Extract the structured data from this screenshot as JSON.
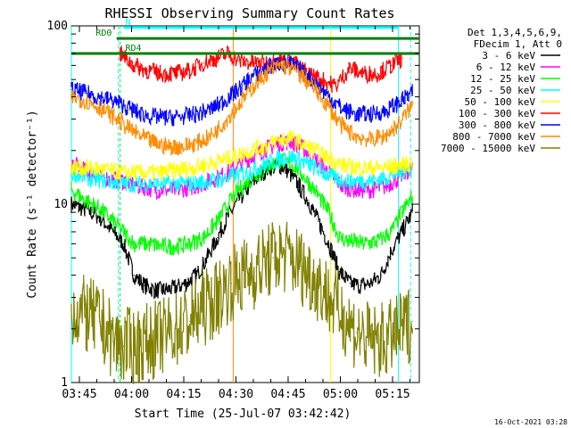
{
  "chart_data": {
    "type": "line",
    "title": "RHESSI Observing Summary Count Rates",
    "xlabel": "Start Time (25-Jul-07 03:42:42)",
    "ylabel": "Count Rate (s⁻¹ detector⁻¹)",
    "y_scale": "log",
    "ylim": [
      1,
      100
    ],
    "xlim_minutes": [
      0,
      100
    ],
    "x_tick_labels": [
      "03:45",
      "04:00",
      "04:15",
      "04:30",
      "04:45",
      "05:00",
      "05:15"
    ],
    "x_tick_minutes": [
      2.3,
      17.3,
      32.3,
      47.3,
      62.3,
      77.3,
      92.3
    ],
    "y_tick_labels": [
      "1",
      "10",
      "100"
    ],
    "legend_header": [
      "Det 1,3,4,5,6,9,",
      "FDecim 1, Att 0"
    ],
    "legend_position": "right",
    "series": [
      {
        "name": "3 - 6 keV",
        "color": "#000000",
        "values": [
          [
            0,
            10
          ],
          [
            3,
            9.5
          ],
          [
            8,
            8.5
          ],
          [
            12,
            7
          ],
          [
            15,
            6
          ],
          [
            18,
            4
          ],
          [
            21,
            3.5
          ],
          [
            24,
            3.3
          ],
          [
            27,
            3.3
          ],
          [
            30,
            3.4
          ],
          [
            33,
            3.6
          ],
          [
            36,
            4
          ],
          [
            39,
            5
          ],
          [
            42,
            6.5
          ],
          [
            45,
            8.5
          ],
          [
            48,
            10.5
          ],
          [
            51,
            12.5
          ],
          [
            54,
            14.5
          ],
          [
            57,
            16
          ],
          [
            60,
            16.5
          ],
          [
            62,
            15.5
          ],
          [
            65,
            13
          ],
          [
            68,
            10.5
          ],
          [
            71,
            8
          ],
          [
            74,
            6
          ],
          [
            77,
            4.2
          ],
          [
            80,
            3.6
          ],
          [
            83,
            3.5
          ],
          [
            86,
            3.6
          ],
          [
            89,
            4
          ],
          [
            92,
            5.5
          ],
          [
            95,
            7
          ],
          [
            98,
            9
          ]
        ]
      },
      {
        "name": "6 - 12 keV",
        "color": "#ff00ff",
        "values": [
          [
            0,
            17
          ],
          [
            5,
            15
          ],
          [
            10,
            14
          ],
          [
            15,
            13.5
          ],
          [
            20,
            12.5
          ],
          [
            25,
            12
          ],
          [
            30,
            12
          ],
          [
            35,
            12.5
          ],
          [
            40,
            13.5
          ],
          [
            45,
            15
          ],
          [
            50,
            17.5
          ],
          [
            55,
            20
          ],
          [
            60,
            22
          ],
          [
            63,
            22.5
          ],
          [
            66,
            21
          ],
          [
            70,
            18
          ],
          [
            74,
            15
          ],
          [
            78,
            12.5
          ],
          [
            82,
            12
          ],
          [
            86,
            12
          ],
          [
            90,
            12.5
          ],
          [
            94,
            14
          ],
          [
            98,
            16
          ]
        ]
      },
      {
        "name": "12 - 25 keV",
        "color": "#00ff00",
        "values": [
          [
            0,
            12
          ],
          [
            4,
            10.5
          ],
          [
            8,
            9.5
          ],
          [
            12,
            8
          ],
          [
            15,
            7
          ],
          [
            18,
            6
          ],
          [
            22,
            6
          ],
          [
            26,
            5.8
          ],
          [
            30,
            5.8
          ],
          [
            34,
            6
          ],
          [
            38,
            6.5
          ],
          [
            42,
            8
          ],
          [
            45,
            10
          ],
          [
            48,
            12
          ],
          [
            52,
            14
          ],
          [
            56,
            16
          ],
          [
            60,
            17.5
          ],
          [
            63,
            17
          ],
          [
            66,
            15
          ],
          [
            70,
            12
          ],
          [
            74,
            9
          ],
          [
            77,
            6.5
          ],
          [
            80,
            6.2
          ],
          [
            84,
            6
          ],
          [
            88,
            6.2
          ],
          [
            92,
            7
          ],
          [
            95,
            9
          ],
          [
            98,
            11
          ]
        ]
      },
      {
        "name": "25 - 50 keV",
        "color": "#00ffff",
        "values": [
          [
            0,
            15
          ],
          [
            5,
            14
          ],
          [
            10,
            13.5
          ],
          [
            15,
            13
          ],
          [
            20,
            13
          ],
          [
            25,
            13
          ],
          [
            30,
            13
          ],
          [
            35,
            13
          ],
          [
            40,
            13.5
          ],
          [
            45,
            14
          ],
          [
            50,
            15
          ],
          [
            55,
            16.5
          ],
          [
            60,
            18
          ],
          [
            63,
            18.5
          ],
          [
            66,
            17.5
          ],
          [
            70,
            16
          ],
          [
            74,
            14.5
          ],
          [
            78,
            13.5
          ],
          [
            82,
            13.5
          ],
          [
            86,
            13.5
          ],
          [
            90,
            14
          ],
          [
            94,
            15
          ],
          [
            98,
            16
          ]
        ]
      },
      {
        "name": "50 - 100 keV",
        "color": "#ffff00",
        "values": [
          [
            0,
            16
          ],
          [
            5,
            16
          ],
          [
            10,
            15.5
          ],
          [
            15,
            15
          ],
          [
            20,
            15
          ],
          [
            25,
            15
          ],
          [
            30,
            15.5
          ],
          [
            35,
            16
          ],
          [
            40,
            17
          ],
          [
            45,
            18
          ],
          [
            50,
            19.5
          ],
          [
            55,
            21
          ],
          [
            60,
            23
          ],
          [
            63,
            23.5
          ],
          [
            66,
            22
          ],
          [
            70,
            20
          ],
          [
            74,
            18
          ],
          [
            78,
            16.5
          ],
          [
            82,
            16
          ],
          [
            86,
            16
          ],
          [
            90,
            16
          ],
          [
            94,
            16.5
          ],
          [
            98,
            17
          ]
        ]
      },
      {
        "name": "100 - 300 keV",
        "color": "#ff0000",
        "values": [
          [
            14,
            70
          ],
          [
            18,
            60
          ],
          [
            22,
            56
          ],
          [
            26,
            54
          ],
          [
            30,
            54
          ],
          [
            34,
            56
          ],
          [
            38,
            62
          ],
          [
            42,
            66
          ],
          [
            45,
            70
          ],
          [
            48,
            64
          ],
          [
            52,
            62
          ],
          [
            56,
            62
          ],
          [
            60,
            64
          ],
          [
            63,
            64
          ],
          [
            66,
            58
          ],
          [
            70,
            52
          ],
          [
            74,
            48
          ],
          [
            76,
            46
          ],
          [
            80,
            58
          ],
          [
            84,
            54
          ],
          [
            88,
            54
          ],
          [
            92,
            60
          ],
          [
            95,
            66
          ]
        ]
      },
      {
        "name": "300 - 800 keV",
        "color": "#0000ff",
        "values": [
          [
            0,
            44
          ],
          [
            4,
            42
          ],
          [
            8,
            40
          ],
          [
            12,
            38
          ],
          [
            16,
            35
          ],
          [
            20,
            32
          ],
          [
            24,
            31
          ],
          [
            28,
            30.5
          ],
          [
            32,
            31
          ],
          [
            36,
            32
          ],
          [
            40,
            34
          ],
          [
            44,
            38
          ],
          [
            48,
            44
          ],
          [
            52,
            52
          ],
          [
            56,
            58
          ],
          [
            60,
            62
          ],
          [
            63,
            61
          ],
          [
            66,
            56
          ],
          [
            70,
            48
          ],
          [
            74,
            40
          ],
          [
            78,
            34
          ],
          [
            82,
            32
          ],
          [
            86,
            32
          ],
          [
            90,
            33
          ],
          [
            94,
            37
          ],
          [
            98,
            42
          ]
        ]
      },
      {
        "name": "800 - 7000 keV",
        "color": "#ff8c00",
        "values": [
          [
            0,
            40
          ],
          [
            4,
            38
          ],
          [
            8,
            35
          ],
          [
            12,
            31
          ],
          [
            16,
            27
          ],
          [
            20,
            24
          ],
          [
            24,
            22
          ],
          [
            28,
            21
          ],
          [
            32,
            21
          ],
          [
            36,
            22
          ],
          [
            40,
            24
          ],
          [
            44,
            29
          ],
          [
            48,
            36
          ],
          [
            52,
            45
          ],
          [
            56,
            54
          ],
          [
            60,
            60
          ],
          [
            63,
            58
          ],
          [
            66,
            53
          ],
          [
            70,
            44
          ],
          [
            74,
            35
          ],
          [
            78,
            27
          ],
          [
            82,
            24
          ],
          [
            86,
            23
          ],
          [
            90,
            24
          ],
          [
            94,
            28
          ],
          [
            98,
            36
          ]
        ]
      },
      {
        "name": "7000 - 15000 keV",
        "color": "#808000",
        "values": [
          [
            0,
            2.6
          ],
          [
            4,
            2.4
          ],
          [
            8,
            2.2
          ],
          [
            12,
            1.7
          ],
          [
            15,
            1.6
          ],
          [
            18,
            1.6
          ],
          [
            22,
            1.7
          ],
          [
            26,
            1.8
          ],
          [
            30,
            2
          ],
          [
            34,
            2.2
          ],
          [
            38,
            2.6
          ],
          [
            42,
            3
          ],
          [
            46,
            3.6
          ],
          [
            50,
            4
          ],
          [
            54,
            4.4
          ],
          [
            58,
            5
          ],
          [
            60,
            5.2
          ],
          [
            63,
            5
          ],
          [
            66,
            4.5
          ],
          [
            70,
            3.8
          ],
          [
            74,
            3
          ],
          [
            78,
            2.4
          ],
          [
            82,
            1.9
          ],
          [
            86,
            1.7
          ],
          [
            90,
            1.7
          ],
          [
            94,
            1.9
          ],
          [
            98,
            2.2
          ]
        ]
      }
    ],
    "annotations": [
      {
        "label": "N",
        "color": "#00ffff",
        "x_minutes": [
          15,
          94
        ],
        "y": 98,
        "x_label_minutes": 15.5
      },
      {
        "label": "RD0",
        "color": "#008000",
        "x_minutes": [
          13,
          100
        ],
        "y": 85,
        "x_label_minutes": 7
      },
      {
        "label": "RD4",
        "color": "#008000",
        "x_minutes": [
          0,
          100
        ],
        "y": 70,
        "x_label_minutes": 15.5
      }
    ],
    "grid": false
  },
  "footer": {
    "timestamp": "16-Oct-2021 03:28"
  }
}
